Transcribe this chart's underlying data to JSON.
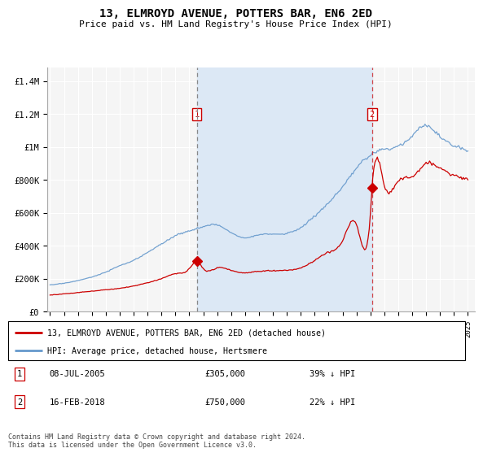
{
  "title": "13, ELMROYD AVENUE, POTTERS BAR, EN6 2ED",
  "subtitle": "Price paid vs. HM Land Registry's House Price Index (HPI)",
  "ylabel_ticks": [
    "£0",
    "£200K",
    "£400K",
    "£600K",
    "£800K",
    "£1M",
    "£1.2M",
    "£1.4M"
  ],
  "ytick_values": [
    0,
    200000,
    400000,
    600000,
    800000,
    1000000,
    1200000,
    1400000
  ],
  "ylim": [
    0,
    1480000
  ],
  "xlim_start": 1995.0,
  "xlim_end": 2025.5,
  "plot_bg_color": "#f0f4f8",
  "grid_color": "#cccccc",
  "red_line_color": "#cc0000",
  "blue_line_color": "#6699cc",
  "shade_color": "#dce8f5",
  "transaction1_date": 2005.54,
  "transaction1_price": 305000,
  "transaction2_date": 2018.12,
  "transaction2_price": 750000,
  "legend_label_red": "13, ELMROYD AVENUE, POTTERS BAR, EN6 2ED (detached house)",
  "legend_label_blue": "HPI: Average price, detached house, Hertsmere",
  "table_row1": [
    "1",
    "08-JUL-2005",
    "£305,000",
    "39% ↓ HPI"
  ],
  "table_row2": [
    "2",
    "16-FEB-2018",
    "£750,000",
    "22% ↓ HPI"
  ],
  "footer": "Contains HM Land Registry data © Crown copyright and database right 2024.\nThis data is licensed under the Open Government Licence v3.0."
}
